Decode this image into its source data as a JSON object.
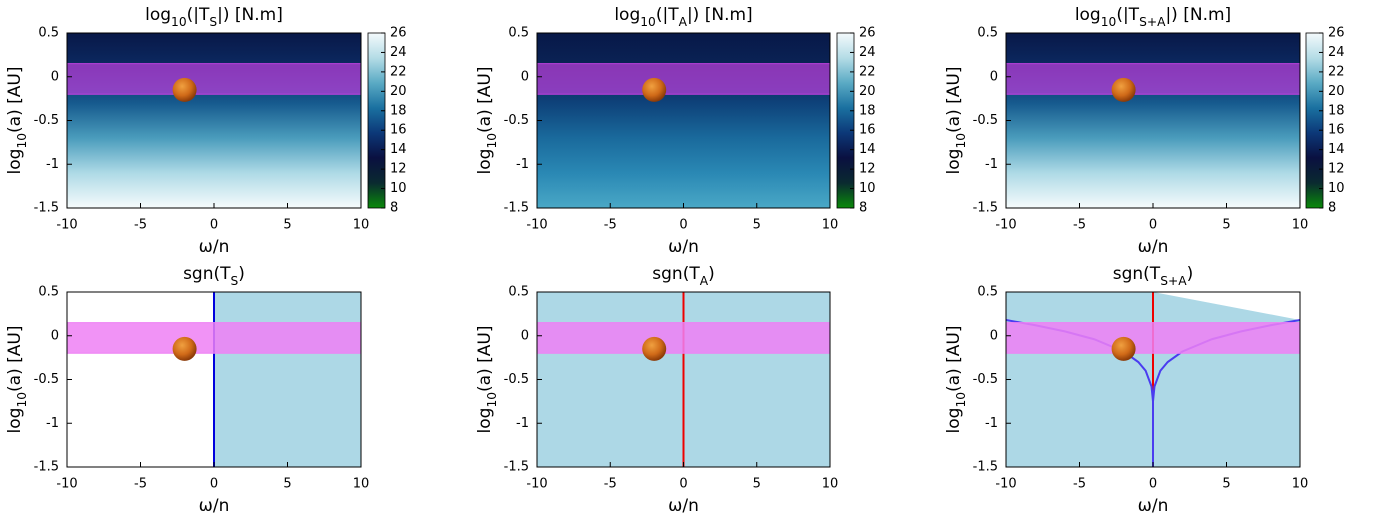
{
  "chart_data": [
    {
      "type": "heatmap",
      "title": [
        {
          "text": "log"
        },
        {
          "text": "10",
          "sub": true
        },
        {
          "text": "(|T"
        },
        {
          "text": "S",
          "sub": true
        },
        {
          "text": "|) [N.m]"
        }
      ],
      "xlabel": "ω/n",
      "ylabel": [
        {
          "text": "log"
        },
        {
          "text": "10",
          "sub": true
        },
        {
          "text": "(a) [AU]"
        }
      ],
      "xlim": [
        -10,
        10
      ],
      "ylim": [
        -1.5,
        0.5
      ],
      "xticks": [
        -10,
        -5,
        0,
        5,
        10
      ],
      "yticks": [
        0.5,
        0,
        -0.5,
        -1,
        -1.5
      ],
      "clim": [
        8,
        26
      ],
      "cticks": [
        26,
        24,
        22,
        20,
        18,
        16,
        14,
        12,
        10,
        8
      ],
      "colormap": [
        "#0a8a0a",
        "#0a2a30",
        "#0a1040",
        "#0c3878",
        "#1a70a0",
        "#5aaac4",
        "#b4dce6",
        "#f4fafc"
      ],
      "background": [
        "#f6fbfc",
        "#aedae6",
        "#4a9cbc",
        "#165a8e",
        "#0c2a62",
        "#081848"
      ],
      "band": [
        -0.2,
        0.15
      ],
      "band_color": "#c040e0",
      "marker": {
        "x": -2,
        "y": -0.15
      }
    },
    {
      "type": "heatmap",
      "title": [
        {
          "text": "log"
        },
        {
          "text": "10",
          "sub": true
        },
        {
          "text": "(|T"
        },
        {
          "text": "A",
          "sub": true
        },
        {
          "text": "|) [N.m]"
        }
      ],
      "xlabel": "ω/n",
      "ylabel": [
        {
          "text": "log"
        },
        {
          "text": "10",
          "sub": true
        },
        {
          "text": "(a) [AU]"
        }
      ],
      "xlim": [
        -10,
        10
      ],
      "ylim": [
        -1.5,
        0.5
      ],
      "xticks": [
        -10,
        -5,
        0,
        5,
        10
      ],
      "yticks": [
        0.5,
        0,
        -0.5,
        -1,
        -1.5
      ],
      "clim": [
        8,
        26
      ],
      "cticks": [
        26,
        24,
        22,
        20,
        18,
        16,
        14,
        12,
        10,
        8
      ],
      "colormap": [
        "#0a8a0a",
        "#0a2a30",
        "#0a1040",
        "#0c3878",
        "#1a70a0",
        "#5aaac4",
        "#b4dce6",
        "#f4fafc"
      ],
      "background": [
        "#4aa8c6",
        "#2a88b4",
        "#1a6a9c",
        "#0e427a",
        "#0a2456",
        "#081848"
      ],
      "band": [
        -0.2,
        0.15
      ],
      "band_color": "#c040e0",
      "marker": {
        "x": -2,
        "y": -0.15
      }
    },
    {
      "type": "heatmap",
      "title": [
        {
          "text": "log"
        },
        {
          "text": "10",
          "sub": true
        },
        {
          "text": "(|T"
        },
        {
          "text": "S+A",
          "sub": true
        },
        {
          "text": "|) [N.m]"
        }
      ],
      "xlabel": "ω/n",
      "ylabel": [
        {
          "text": "log"
        },
        {
          "text": "10",
          "sub": true
        },
        {
          "text": "(a) [AU]"
        }
      ],
      "xlim": [
        -10,
        10
      ],
      "ylim": [
        -1.5,
        0.5
      ],
      "xticks": [
        -10,
        -5,
        0,
        5,
        10
      ],
      "yticks": [
        0.5,
        0,
        -0.5,
        -1,
        -1.5
      ],
      "clim": [
        8,
        26
      ],
      "cticks": [
        26,
        24,
        22,
        20,
        18,
        16,
        14,
        12,
        10,
        8
      ],
      "colormap": [
        "#0a8a0a",
        "#0a2a30",
        "#0a1040",
        "#0c3878",
        "#1a70a0",
        "#5aaac4",
        "#b4dce6",
        "#f4fafc"
      ],
      "background": [
        "#f6fbfc",
        "#aedae6",
        "#4a9cbc",
        "#165a8e",
        "#0c2a62",
        "#081848"
      ],
      "band": [
        -0.2,
        0.15
      ],
      "band_color": "#c040e0",
      "marker": {
        "x": -2,
        "y": -0.15
      }
    },
    {
      "type": "sign_map",
      "title": [
        {
          "text": "sgn(T"
        },
        {
          "text": "S",
          "sub": true
        },
        {
          "text": ")"
        }
      ],
      "xlabel": "ω/n",
      "ylabel": [
        {
          "text": "log"
        },
        {
          "text": "10",
          "sub": true
        },
        {
          "text": "(a) [AU]"
        }
      ],
      "xlim": [
        -10,
        10
      ],
      "ylim": [
        -1.5,
        0.5
      ],
      "xticks": [
        -10,
        -5,
        0,
        5,
        10
      ],
      "yticks": [
        0.5,
        0,
        -0.5,
        -1,
        -1.5
      ],
      "shaded": "right",
      "shade_color": "#add8e6",
      "boundary_x": 0,
      "line_color": "#0000dd",
      "band": [
        -0.2,
        0.15
      ],
      "band_color": "#ee80f4",
      "marker": {
        "x": -2,
        "y": -0.15
      }
    },
    {
      "type": "sign_map",
      "title": [
        {
          "text": "sgn(T"
        },
        {
          "text": "A",
          "sub": true
        },
        {
          "text": ")"
        }
      ],
      "xlabel": "ω/n",
      "ylabel": [
        {
          "text": "log"
        },
        {
          "text": "10",
          "sub": true
        },
        {
          "text": "(a) [AU]"
        }
      ],
      "xlim": [
        -10,
        10
      ],
      "ylim": [
        -1.5,
        0.5
      ],
      "xticks": [
        -10,
        -5,
        0,
        5,
        10
      ],
      "yticks": [
        0.5,
        0,
        -0.5,
        -1,
        -1.5
      ],
      "shaded": "all",
      "shade_color": "#add8e6",
      "boundary_x": 0,
      "line_color": "#ee0000",
      "band": [
        -0.2,
        0.15
      ],
      "band_color": "#ee80f4",
      "marker": {
        "x": -2,
        "y": -0.15
      }
    },
    {
      "type": "sign_map",
      "title": [
        {
          "text": "sgn(T"
        },
        {
          "text": "S+A",
          "sub": true
        },
        {
          "text": ")"
        }
      ],
      "xlabel": "ω/n",
      "ylabel": [
        {
          "text": "log"
        },
        {
          "text": "10",
          "sub": true
        },
        {
          "text": "(a) [AU]"
        }
      ],
      "xlim": [
        -10,
        10
      ],
      "ylim": [
        -1.5,
        0.5
      ],
      "xticks": [
        -10,
        -5,
        0,
        5,
        10
      ],
      "yticks": [
        0.5,
        0,
        -0.5,
        -1,
        -1.5
      ],
      "shaded": "curve",
      "shade_color": "#add8e6",
      "boundary_x": 0,
      "line_color": "#ee0000",
      "curve_color": "#4a3cf0",
      "curve": {
        "x": [
          -10,
          -8,
          -6,
          -4,
          -2,
          -1,
          -0.5,
          -0.1,
          0,
          0.1,
          0.5,
          1,
          2,
          4,
          6,
          8,
          10
        ],
        "y": [
          0.18,
          0.12,
          0.05,
          -0.04,
          -0.18,
          -0.3,
          -0.4,
          -0.58,
          -0.75,
          -0.58,
          -0.4,
          -0.3,
          -0.18,
          -0.04,
          0.05,
          0.12,
          0.18
        ]
      },
      "band": [
        -0.2,
        0.15
      ],
      "band_color": "#ee80f4",
      "marker": {
        "x": -2,
        "y": -0.15
      }
    }
  ]
}
